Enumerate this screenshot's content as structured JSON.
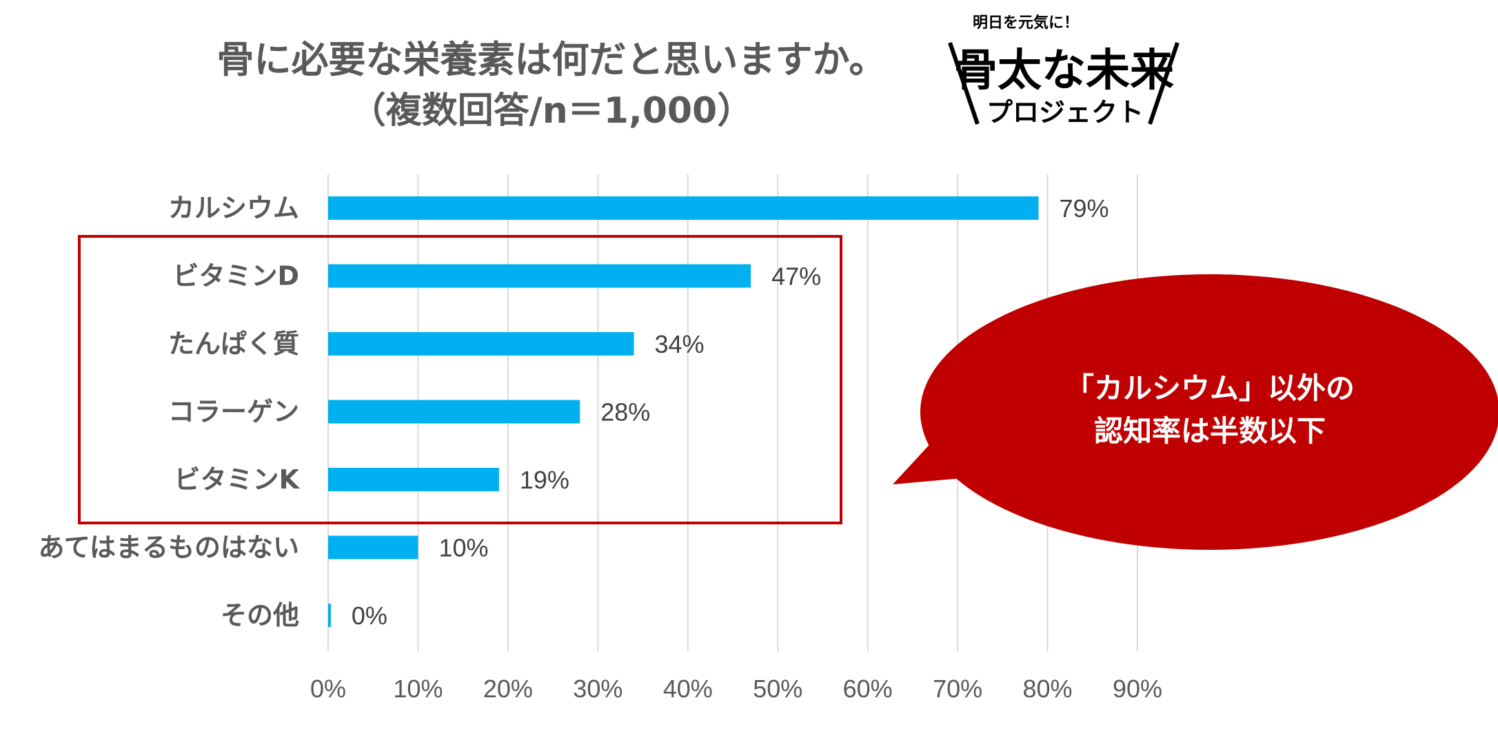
{
  "title": "骨に必要な栄養素は何だと思いますか。",
  "subtitle": "（複数回答/n＝1,000）",
  "logo": {
    "tagline": "明日を元気に！",
    "name": "骨太な未来",
    "suffix": "プロジェクト"
  },
  "callout": {
    "line1": "「カルシウム」以外の",
    "line2": "認知率は半数以下",
    "fill": "#c00000"
  },
  "highlight_box_color": "#c00000",
  "chart_data": {
    "type": "bar",
    "orientation": "horizontal",
    "categories": [
      "カルシウム",
      "ビタミンD",
      "たんぱく質",
      "コラーゲン",
      "ビタミンK",
      "あてはまるものはない",
      "その他"
    ],
    "values": [
      79,
      47,
      34,
      28,
      19,
      10,
      0.3
    ],
    "value_labels": [
      "79%",
      "47%",
      "34%",
      "28%",
      "19%",
      "10%",
      "0%"
    ],
    "xlim": [
      0,
      90
    ],
    "xticks": [
      "0%",
      "10%",
      "20%",
      "30%",
      "40%",
      "50%",
      "60%",
      "70%",
      "80%",
      "90%"
    ],
    "grid": "vertical",
    "bar_color": "#00b0f0",
    "gridline_color": "#d9d9d9"
  }
}
